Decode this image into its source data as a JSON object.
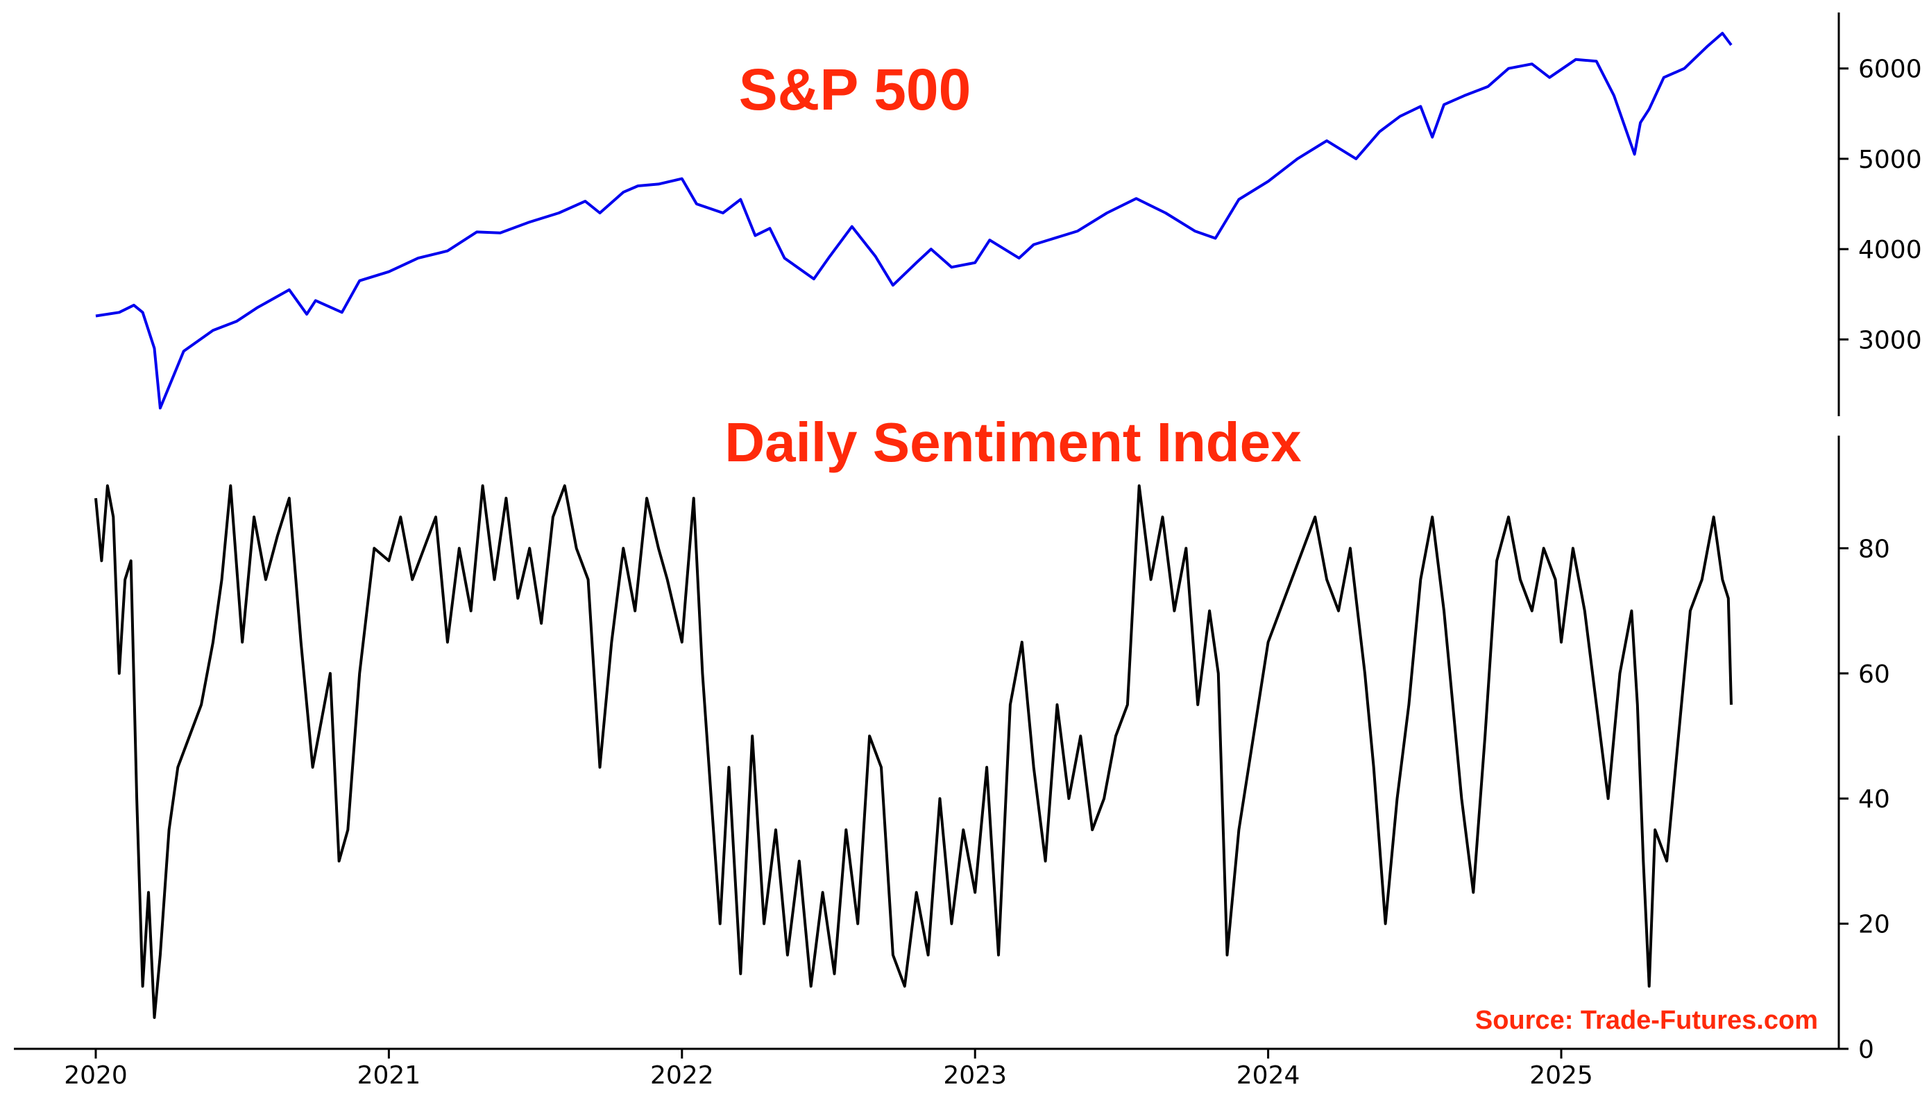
{
  "chart_data": [
    {
      "type": "line",
      "title": "S&P 500",
      "title_color": "#ff2a0a",
      "line_color": "#0000ee",
      "xlabel": "",
      "ylabel": "",
      "x_ticks": [
        "2020",
        "2021",
        "2022",
        "2023",
        "2024",
        "2025"
      ],
      "y_ticks": [
        3000,
        4000,
        5000,
        6000
      ],
      "ylim": [
        2150,
        6620
      ],
      "xlim": [
        2019.93,
        2025.83
      ],
      "x": [
        2020.0,
        2020.08,
        2020.13,
        2020.16,
        2020.2,
        2020.22,
        2020.3,
        2020.4,
        2020.48,
        2020.55,
        2020.66,
        2020.72,
        2020.75,
        2020.84,
        2020.9,
        2021.0,
        2021.1,
        2021.2,
        2021.3,
        2021.38,
        2021.48,
        2021.58,
        2021.67,
        2021.72,
        2021.8,
        2021.85,
        2021.92,
        2022.0,
        2022.05,
        2022.14,
        2022.2,
        2022.25,
        2022.3,
        2022.35,
        2022.45,
        2022.5,
        2022.58,
        2022.66,
        2022.72,
        2022.8,
        2022.85,
        2022.92,
        2023.0,
        2023.05,
        2023.15,
        2023.2,
        2023.25,
        2023.35,
        2023.45,
        2023.55,
        2023.65,
        2023.75,
        2023.82,
        2023.9,
        2024.0,
        2024.1,
        2024.2,
        2024.3,
        2024.38,
        2024.45,
        2024.52,
        2024.56,
        2024.6,
        2024.67,
        2024.75,
        2024.82,
        2024.9,
        2024.96,
        2025.05,
        2025.12,
        2025.18,
        2025.25,
        2025.27,
        2025.3,
        2025.35,
        2025.42,
        2025.5,
        2025.55,
        2025.58
      ],
      "values": [
        3260,
        3300,
        3380,
        3300,
        2900,
        2240,
        2870,
        3100,
        3200,
        3350,
        3550,
        3280,
        3430,
        3300,
        3650,
        3750,
        3900,
        3980,
        4190,
        4180,
        4300,
        4400,
        4530,
        4400,
        4630,
        4700,
        4720,
        4780,
        4500,
        4400,
        4550,
        4150,
        4230,
        3900,
        3670,
        3900,
        4250,
        3920,
        3600,
        3850,
        4000,
        3800,
        3850,
        4100,
        3900,
        4050,
        4100,
        4200,
        4400,
        4560,
        4400,
        4200,
        4120,
        4550,
        4750,
        5000,
        5200,
        5000,
        5300,
        5470,
        5580,
        5240,
        5600,
        5700,
        5800,
        6000,
        6050,
        5900,
        6100,
        6080,
        5700,
        5050,
        5400,
        5550,
        5900,
        6000,
        6250,
        6390,
        6260
      ]
    },
    {
      "type": "line",
      "title": "Daily Sentiment Index",
      "title_color": "#ff2a0a",
      "line_color": "#000000",
      "xlabel": "",
      "ylabel": "",
      "x_ticks": [
        "2020",
        "2021",
        "2022",
        "2023",
        "2024",
        "2025"
      ],
      "y_ticks": [
        0,
        20,
        40,
        60,
        80
      ],
      "ylim": [
        0,
        98
      ],
      "xlim": [
        2019.93,
        2025.83
      ],
      "x": [
        2020.0,
        2020.02,
        2020.04,
        2020.06,
        2020.08,
        2020.1,
        2020.12,
        2020.14,
        2020.16,
        2020.18,
        2020.2,
        2020.22,
        2020.25,
        2020.28,
        2020.32,
        2020.36,
        2020.4,
        2020.43,
        2020.46,
        2020.5,
        2020.54,
        2020.58,
        2020.62,
        2020.66,
        2020.7,
        2020.74,
        2020.78,
        2020.8,
        2020.83,
        2020.86,
        2020.9,
        2020.95,
        2021.0,
        2021.04,
        2021.08,
        2021.12,
        2021.16,
        2021.2,
        2021.24,
        2021.28,
        2021.32,
        2021.36,
        2021.4,
        2021.44,
        2021.48,
        2021.52,
        2021.56,
        2021.6,
        2021.64,
        2021.68,
        2021.72,
        2021.76,
        2021.8,
        2021.84,
        2021.88,
        2021.92,
        2021.95,
        2022.0,
        2022.04,
        2022.07,
        2022.1,
        2022.13,
        2022.16,
        2022.2,
        2022.24,
        2022.28,
        2022.32,
        2022.36,
        2022.4,
        2022.44,
        2022.48,
        2022.52,
        2022.56,
        2022.6,
        2022.64,
        2022.68,
        2022.72,
        2022.76,
        2022.8,
        2022.84,
        2022.88,
        2022.92,
        2022.96,
        2023.0,
        2023.04,
        2023.08,
        2023.12,
        2023.16,
        2023.2,
        2023.24,
        2023.28,
        2023.32,
        2023.36,
        2023.4,
        2023.44,
        2023.48,
        2023.52,
        2023.56,
        2023.6,
        2023.64,
        2023.68,
        2023.72,
        2023.76,
        2023.8,
        2023.83,
        2023.86,
        2023.9,
        2023.95,
        2024.0,
        2024.04,
        2024.08,
        2024.12,
        2024.16,
        2024.2,
        2024.24,
        2024.28,
        2024.3,
        2024.33,
        2024.36,
        2024.4,
        2024.44,
        2024.48,
        2024.52,
        2024.56,
        2024.6,
        2024.62,
        2024.66,
        2024.7,
        2024.74,
        2024.78,
        2024.82,
        2024.86,
        2024.9,
        2024.94,
        2024.98,
        2025.0,
        2025.04,
        2025.08,
        2025.12,
        2025.16,
        2025.2,
        2025.24,
        2025.26,
        2025.28,
        2025.3,
        2025.32,
        2025.36,
        2025.4,
        2025.44,
        2025.48,
        2025.5,
        2025.52,
        2025.55,
        2025.57,
        2025.58
      ],
      "values": [
        88,
        78,
        90,
        85,
        60,
        75,
        78,
        40,
        10,
        25,
        5,
        15,
        35,
        45,
        50,
        55,
        65,
        75,
        90,
        65,
        85,
        75,
        82,
        88,
        65,
        45,
        55,
        60,
        30,
        35,
        60,
        80,
        78,
        85,
        75,
        80,
        85,
        65,
        80,
        70,
        90,
        75,
        88,
        72,
        80,
        68,
        85,
        90,
        80,
        75,
        45,
        65,
        80,
        70,
        88,
        80,
        75,
        65,
        88,
        60,
        40,
        20,
        45,
        12,
        50,
        20,
        35,
        15,
        30,
        10,
        25,
        12,
        35,
        20,
        50,
        45,
        15,
        10,
        25,
        15,
        40,
        20,
        35,
        25,
        45,
        15,
        55,
        65,
        45,
        30,
        55,
        40,
        50,
        35,
        40,
        50,
        55,
        90,
        75,
        85,
        70,
        80,
        55,
        70,
        60,
        15,
        35,
        50,
        65,
        70,
        75,
        80,
        85,
        75,
        70,
        80,
        72,
        60,
        45,
        20,
        40,
        55,
        75,
        85,
        70,
        60,
        40,
        25,
        50,
        78,
        85,
        75,
        70,
        80,
        75,
        65,
        80,
        70,
        55,
        40,
        60,
        70,
        55,
        30,
        10,
        35,
        30,
        50,
        70,
        75,
        80,
        85,
        75,
        72,
        55
      ]
    }
  ],
  "source_label": "Source: Trade-Futures.com"
}
